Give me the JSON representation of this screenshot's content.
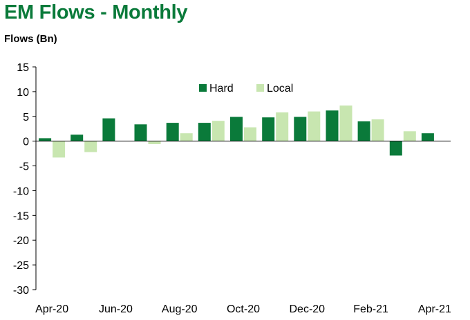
{
  "title": "EM Flows - Monthly",
  "chart_data": {
    "type": "bar",
    "title": "EM Flows - Monthly",
    "ylabel": "Flows (Bn)",
    "xlabel": "",
    "ylim": [
      -30,
      15
    ],
    "yticks": [
      15,
      10,
      5,
      0,
      -5,
      -10,
      -15,
      -20,
      -25,
      -30
    ],
    "categories": [
      "Apr-20",
      "May-20",
      "Jun-20",
      "Jul-20",
      "Aug-20",
      "Sep-20",
      "Oct-20",
      "Nov-20",
      "Dec-20",
      "Jan-21",
      "Feb-21",
      "Mar-21",
      "Apr-21"
    ],
    "xtick_labels": [
      "Apr-20",
      "Jun-20",
      "Aug-20",
      "Oct-20",
      "Dec-20",
      "Feb-21",
      "Apr-21"
    ],
    "legend_position": "top-center",
    "grid": false,
    "series": [
      {
        "name": "Hard",
        "color": "#0a7a3a",
        "values": [
          0.6,
          1.3,
          4.6,
          3.4,
          3.7,
          3.7,
          4.9,
          4.8,
          4.9,
          6.2,
          4.0,
          -2.9,
          1.6
        ]
      },
      {
        "name": "Local",
        "color": "#c8e6b0",
        "values": [
          -3.3,
          -2.2,
          null,
          -0.6,
          1.6,
          4.1,
          2.8,
          5.8,
          6.0,
          7.2,
          4.4,
          2.0,
          null
        ]
      }
    ]
  }
}
